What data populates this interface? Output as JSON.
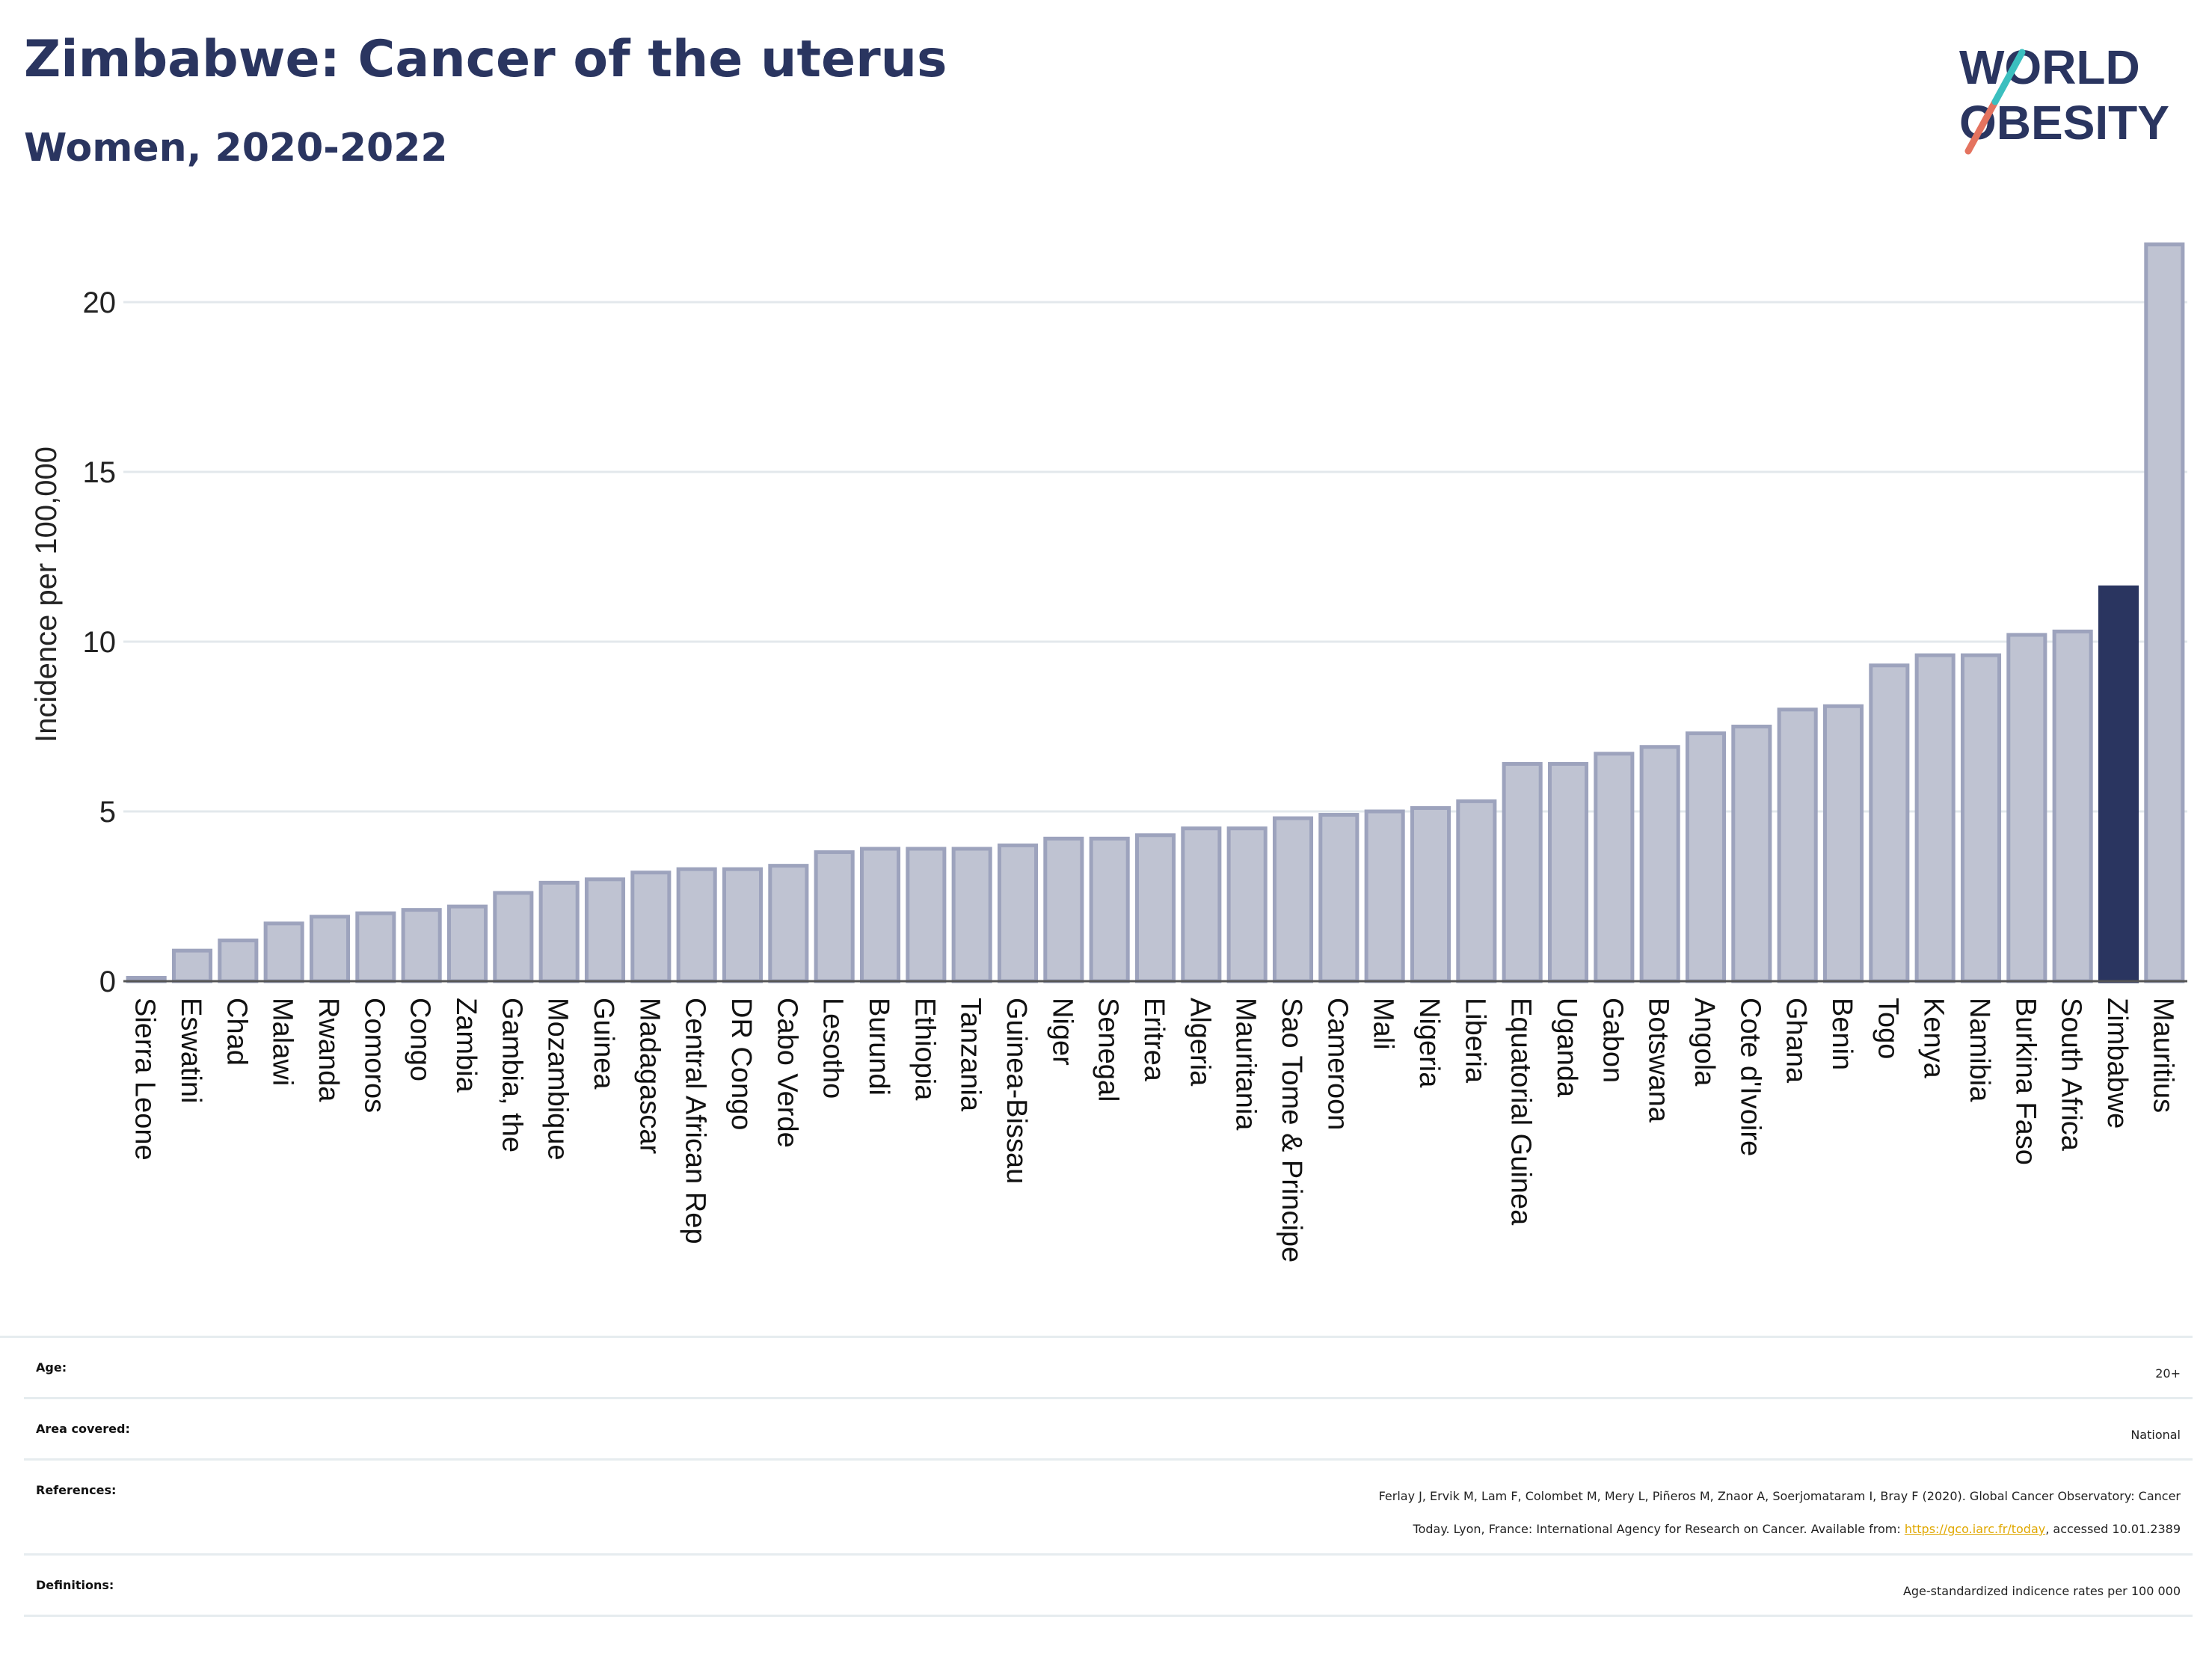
{
  "header": {
    "title": "Zimbabwe: Cancer of the uterus",
    "subtitle": "Women, 2020-2022"
  },
  "logo": {
    "line1": "WORLD",
    "line2": "OBESITY"
  },
  "colors": {
    "bar": "#bfc3d2",
    "bar_stroke": "#9da3bd",
    "highlight": "#2a3560",
    "grid": "#e3e8ec",
    "title": "#2a3560"
  },
  "chart_data": {
    "type": "bar",
    "ylabel": "Incidence per 100,000",
    "ylim": [
      0,
      22
    ],
    "yticks": [
      0,
      5,
      10,
      15,
      20
    ],
    "highlight": "Zimbabwe",
    "grid": true,
    "categories": [
      "Sierra Leone",
      "Eswatini",
      "Chad",
      "Malawi",
      "Rwanda",
      "Comoros",
      "Congo",
      "Zambia",
      "Gambia, the",
      "Mozambique",
      "Guinea",
      "Madagascar",
      "Central African Rep",
      "DR Congo",
      "Cabo Verde",
      "Lesotho",
      "Burundi",
      "Ethiopia",
      "Tanzania",
      "Guinea-Bissau",
      "Niger",
      "Senegal",
      "Eritrea",
      "Algeria",
      "Mauritania",
      "Sao Tome & Principe",
      "Cameroon",
      "Mali",
      "Nigeria",
      "Liberia",
      "Equatorial Guinea",
      "Uganda",
      "Gabon",
      "Botswana",
      "Angola",
      "Cote d'Ivoire",
      "Ghana",
      "Benin",
      "Togo",
      "Kenya",
      "Namibia",
      "Burkina Faso",
      "South Africa",
      "Zimbabwe",
      "Mauritius"
    ],
    "values": [
      0.1,
      0.9,
      1.2,
      1.7,
      1.9,
      2.0,
      2.1,
      2.2,
      2.6,
      2.9,
      3.0,
      3.2,
      3.3,
      3.3,
      3.4,
      3.8,
      3.9,
      3.9,
      3.9,
      4.0,
      4.2,
      4.2,
      4.3,
      4.5,
      4.5,
      4.8,
      4.9,
      5.0,
      5.1,
      5.3,
      6.4,
      6.4,
      6.7,
      6.9,
      7.3,
      7.5,
      8.0,
      8.1,
      9.3,
      9.6,
      9.6,
      10.2,
      10.3,
      11.6,
      21.7
    ]
  },
  "info": {
    "age_label": "Age:",
    "age_value": "20+",
    "area_label": "Area covered:",
    "area_value": "National",
    "references_label": "References:",
    "references_line1": "Ferlay J, Ervik M, Lam F, Colombet M, Mery L, Piñeros M, Znaor A, Soerjomataram I, Bray F (2020). Global Cancer Observatory: Cancer",
    "references_line2_a": "Today. Lyon, France: International Agency for Research on Cancer. Available from: ",
    "references_link": "https://gco.iarc.fr/today",
    "references_line2_b": ", accessed 10.01.2389",
    "definitions_label": "Definitions:",
    "definitions_value": "Age-standardized indicence rates per 100 000"
  }
}
